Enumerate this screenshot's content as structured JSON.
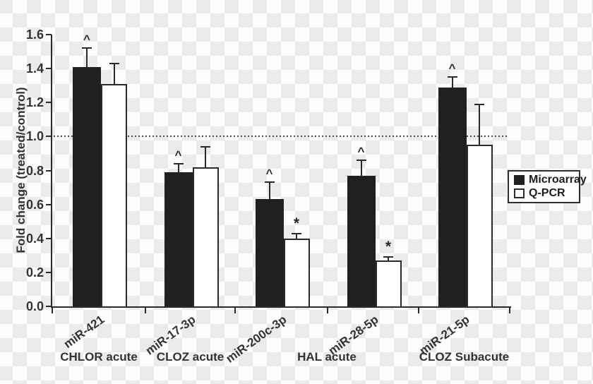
{
  "chart_data": {
    "type": "bar",
    "title": "",
    "ylabel": "Fold change (treated/control)",
    "ylim": [
      0,
      1.6
    ],
    "ytick_step": 0.2,
    "yticks": [
      "0.0",
      "0.2",
      "0.4",
      "0.6",
      "0.8",
      "1.0",
      "1.2",
      "1.4",
      "1.6"
    ],
    "reference_line": 1.0,
    "grid": false,
    "legend_position": "right",
    "categories": [
      "miR-421",
      "miR-17-3p",
      "miR-200c-3p",
      "miR-28-5p",
      "miR-21-5p"
    ],
    "condition_groups": [
      {
        "label": "CHLOR acute",
        "span": [
          0,
          0
        ]
      },
      {
        "label": "CLOZ acute",
        "span": [
          1,
          1
        ]
      },
      {
        "label": "HAL acute",
        "span": [
          2,
          3
        ]
      },
      {
        "label": "CLOZ Subacute",
        "span": [
          4,
          4
        ]
      }
    ],
    "series": [
      {
        "name": "Microarray",
        "fill": "black",
        "values": [
          1.41,
          0.79,
          0.63,
          0.77,
          1.29
        ],
        "error_top": [
          1.52,
          0.84,
          0.73,
          0.86,
          1.35
        ],
        "annotations": [
          "^",
          "^",
          "^",
          "^",
          "^"
        ]
      },
      {
        "name": "Q-PCR",
        "fill": "white",
        "values": [
          1.31,
          0.82,
          0.4,
          0.27,
          0.95
        ],
        "error_top": [
          1.43,
          0.94,
          0.43,
          0.29,
          1.19
        ],
        "annotations": [
          "",
          "",
          "*",
          "*",
          ""
        ]
      }
    ]
  },
  "legend": {
    "items": [
      {
        "label": "Microarray",
        "swatch": "black"
      },
      {
        "label": "Q-PCR",
        "swatch": "white"
      }
    ]
  },
  "colors": {
    "bar_black": "#221f20",
    "bar_white": "#ffffff",
    "axis": "#2b2b2b",
    "text": "#333333",
    "checker_gray": "#ebebeb",
    "checker_white": "#fdfdfd"
  }
}
